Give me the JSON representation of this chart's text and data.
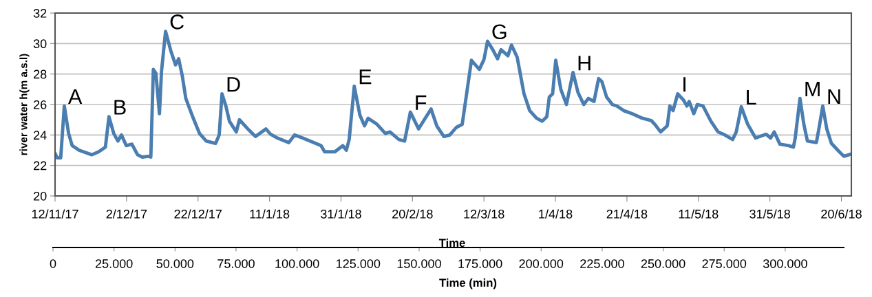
{
  "chart_data": {
    "type": "line",
    "xlabel": "Time",
    "ylabel": "river water h(m a.s.l)",
    "x2label": "Time (min)",
    "xlim": [
      "2017-11-12",
      "2018-06-22T19:00"
    ],
    "xticks": [
      {
        "value": "2017-11-12",
        "label": "12/11/17"
      },
      {
        "value": "2017-12-02",
        "label": "2/12/17"
      },
      {
        "value": "2017-12-22",
        "label": "22/12/17"
      },
      {
        "value": "2018-01-11",
        "label": "11/1/18"
      },
      {
        "value": "2018-01-31",
        "label": "31/1/18"
      },
      {
        "value": "2018-02-20",
        "label": "20/2/18"
      },
      {
        "value": "2018-03-12",
        "label": "12/3/18"
      },
      {
        "value": "2018-04-01",
        "label": "1/4/18"
      },
      {
        "value": "2018-04-21",
        "label": "21/4/18"
      },
      {
        "value": "2018-05-11",
        "label": "11/5/18"
      },
      {
        "value": "2018-05-31",
        "label": "31/5/18"
      },
      {
        "value": "2018-06-20",
        "label": "20/6/18"
      }
    ],
    "ylim": [
      20,
      32
    ],
    "yticks": [
      20,
      22,
      24,
      26,
      28,
      30,
      32
    ],
    "x2lim": [
      0,
      324000
    ],
    "x2ticks": [
      0,
      {
        "value": 25000,
        "label": "25.000"
      },
      {
        "value": 50000,
        "label": "50.000"
      },
      {
        "value": 75000,
        "label": "75.000"
      },
      {
        "value": 100000,
        "label": "100.000"
      },
      {
        "value": 125000,
        "label": "125.000"
      },
      {
        "value": 150000,
        "label": "150.000"
      },
      {
        "value": 175000,
        "label": "175.000"
      },
      {
        "value": 200000,
        "label": "200.000"
      },
      {
        "value": 225000,
        "label": "225.000"
      },
      {
        "value": 250000,
        "label": "250.000"
      },
      {
        "value": 275000,
        "label": "275.000"
      },
      {
        "value": 300000,
        "label": "300.000"
      }
    ],
    "grid": "y",
    "x": [
      "2017-11-12T00:00",
      "2017-11-12T14:00",
      "2017-11-13T14:00",
      "2017-11-14T14:00",
      "2017-11-15T19:00",
      "2017-11-16T19:00",
      "2017-11-18T17:00",
      "2017-11-22T07:00",
      "2017-11-24T05:00",
      "2017-11-26T02:00",
      "2017-11-27T02:00",
      "2017-11-28T10:00",
      "2017-11-29T14:00",
      "2017-11-30T14:00",
      "2017-12-01T22:00",
      "2017-12-03T12:00",
      "2017-12-05T02:00",
      "2017-12-06T10:00",
      "2017-12-08T00:00",
      "2017-12-08T19:00",
      "2017-12-09T12:00",
      "2017-12-10T05:00",
      "2017-12-11T05:00",
      "2017-12-11T19:00",
      "2017-12-12T22:00",
      "2017-12-14T10:00",
      "2017-12-15T17:00",
      "2017-12-16T14:00",
      "2017-12-17T14:00",
      "2017-12-18T14:00",
      "2017-12-20T12:00",
      "2017-12-22T10:00",
      "2017-12-24T07:00",
      "2017-12-26T22:00",
      "2017-12-27T22:00",
      "2017-12-28T17:00",
      "2017-12-29T19:00",
      "2017-12-30T19:00",
      "2018-01-01T17:00",
      "2018-01-02T14:00",
      "2018-01-04T22:00",
      "2018-01-07T02:00",
      "2018-01-10T00:00",
      "2018-01-11T07:00",
      "2018-01-13T05:00",
      "2018-01-16T10:00",
      "2018-01-18T00:00",
      "2018-01-20T07:00",
      "2018-01-25T10:00",
      "2018-01-26T10:00",
      "2018-01-29T07:00",
      "2018-01-31T12:00",
      "2018-02-01T12:00",
      "2018-02-02T07:00",
      "2018-02-03T17:00",
      "2018-02-05T07:00",
      "2018-02-06T14:00",
      "2018-02-07T14:00",
      "2018-02-10T02:00",
      "2018-02-12T10:00",
      "2018-02-13T17:00",
      "2018-02-16T05:00",
      "2018-02-17T19:00",
      "2018-02-19T10:00",
      "2018-02-21T17:00",
      "2018-02-23T07:00",
      "2018-02-25T05:00",
      "2018-02-26T19:00",
      "2018-02-28T19:00",
      "2018-03-02T10:00",
      "2018-03-04T07:00",
      "2018-03-05T22:00",
      "2018-03-07T05:00",
      "2018-03-08T12:00",
      "2018-03-10T17:00",
      "2018-03-12T00:00",
      "2018-03-13T00:00",
      "2018-03-14T14:00",
      "2018-03-15T19:00",
      "2018-03-16T19:00",
      "2018-03-18T17:00",
      "2018-03-19T17:00",
      "2018-03-21T07:00",
      "2018-03-23T05:00",
      "2018-03-24T19:00",
      "2018-03-26T17:00",
      "2018-03-28T07:00",
      "2018-03-29T14:00",
      "2018-03-30T07:00",
      "2018-03-31T05:00",
      "2018-04-01T02:00",
      "2018-04-02T12:00",
      "2018-04-04T02:00",
      "2018-04-05T22:00",
      "2018-04-07T07:00",
      "2018-04-08T22:00",
      "2018-04-10T05:00",
      "2018-04-11T19:00",
      "2018-04-13T02:00",
      "2018-04-14T00:00",
      "2018-04-15T07:00",
      "2018-04-16T22:00",
      "2018-04-18T05:00",
      "2018-04-20T02:00",
      "2018-04-22T10:00",
      "2018-04-25T07:00",
      "2018-04-27T19:00",
      "2018-04-28T19:00",
      "2018-04-30T10:00",
      "2018-05-02T07:00",
      "2018-05-03T00:00",
      "2018-05-03T22:00",
      "2018-05-05T05:00",
      "2018-05-06T19:00",
      "2018-05-07T19:00",
      "2018-05-08T10:00",
      "2018-05-09T17:00",
      "2018-05-10T17:00",
      "2018-05-12T07:00",
      "2018-05-14T12:00",
      "2018-05-16T12:00",
      "2018-05-18T10:00",
      "2018-05-20T14:00",
      "2018-05-21T14:00",
      "2018-05-23T00:00",
      "2018-05-24T19:00",
      "2018-05-27T00:00",
      "2018-05-29T22:00",
      "2018-05-31T05:00",
      "2018-06-01T05:00",
      "2018-06-02T19:00",
      "2018-06-05T07:00",
      "2018-06-06T14:00",
      "2018-06-07T02:00",
      "2018-06-08T10:00",
      "2018-06-09T12:00",
      "2018-06-10T12:00",
      "2018-06-13T00:00",
      "2018-06-13T17:00",
      "2018-06-14T19:00",
      "2018-06-15T22:00",
      "2018-06-17T05:00",
      "2018-06-19T10:00",
      "2018-06-20T17:00",
      "2018-06-22T17:00"
    ],
    "series": [
      {
        "color": "#4a7db0",
        "values": [
          22.8,
          22.5,
          22.5,
          25.9,
          24.1,
          23.3,
          23.0,
          22.7,
          22.9,
          23.2,
          25.2,
          24.1,
          23.6,
          24.0,
          23.3,
          23.4,
          22.7,
          22.55,
          22.6,
          22.55,
          28.3,
          28.05,
          25.4,
          28.2,
          30.8,
          29.5,
          28.6,
          29.0,
          27.9,
          26.4,
          25.2,
          24.1,
          23.6,
          23.45,
          24.0,
          26.7,
          25.9,
          24.9,
          24.2,
          25.0,
          24.4,
          23.9,
          24.4,
          24.05,
          23.8,
          23.5,
          24.0,
          23.8,
          23.3,
          22.9,
          22.9,
          23.3,
          23.0,
          23.7,
          27.2,
          25.3,
          24.6,
          25.1,
          24.7,
          24.1,
          24.2,
          23.7,
          23.6,
          25.5,
          24.4,
          25.0,
          25.7,
          24.6,
          23.9,
          24.0,
          24.5,
          24.7,
          26.8,
          28.9,
          28.3,
          28.95,
          30.15,
          29.55,
          29.0,
          29.6,
          29.2,
          29.9,
          29.1,
          26.7,
          25.6,
          25.1,
          24.9,
          25.2,
          26.5,
          26.7,
          28.9,
          27.0,
          26.0,
          28.1,
          26.8,
          26.0,
          26.4,
          26.2,
          27.7,
          27.5,
          26.5,
          26.0,
          25.9,
          25.6,
          25.4,
          25.1,
          24.95,
          24.7,
          24.2,
          24.6,
          25.9,
          25.6,
          26.7,
          26.3,
          25.9,
          26.2,
          25.4,
          26.0,
          25.9,
          24.9,
          24.2,
          24.0,
          23.7,
          24.2,
          25.85,
          24.7,
          23.8,
          24.05,
          23.8,
          24.2,
          23.4,
          23.3,
          23.2,
          23.8,
          26.4,
          24.7,
          23.6,
          23.5,
          24.4,
          25.9,
          24.4,
          23.45,
          22.9,
          22.6,
          22.75
        ]
      }
    ],
    "annotations": [
      {
        "text": "A",
        "x": "2017-11-14T14:00",
        "y": 25.9
      },
      {
        "text": "B",
        "x": "2017-11-27T02:00",
        "y": 25.2
      },
      {
        "text": "C",
        "x": "2017-12-12T22:00",
        "y": 30.8
      },
      {
        "text": "D",
        "x": "2017-12-28T17:00",
        "y": 26.7
      },
      {
        "text": "E",
        "x": "2018-02-03T17:00",
        "y": 27.2
      },
      {
        "text": "F",
        "x": "2018-02-19T10:00",
        "y": 25.5
      },
      {
        "text": "G",
        "x": "2018-03-13T00:00",
        "y": 30.15
      },
      {
        "text": "H",
        "x": "2018-04-05T22:00",
        "y": 28.1
      },
      {
        "text": "I",
        "x": "2018-05-05T05:00",
        "y": 26.7
      },
      {
        "text": "L",
        "x": "2018-05-23T00:00",
        "y": 25.85
      },
      {
        "text": "M",
        "x": "2018-06-08T10:00",
        "y": 26.4
      },
      {
        "text": "N",
        "x": "2018-06-14T19:00",
        "y": 25.9
      }
    ]
  }
}
